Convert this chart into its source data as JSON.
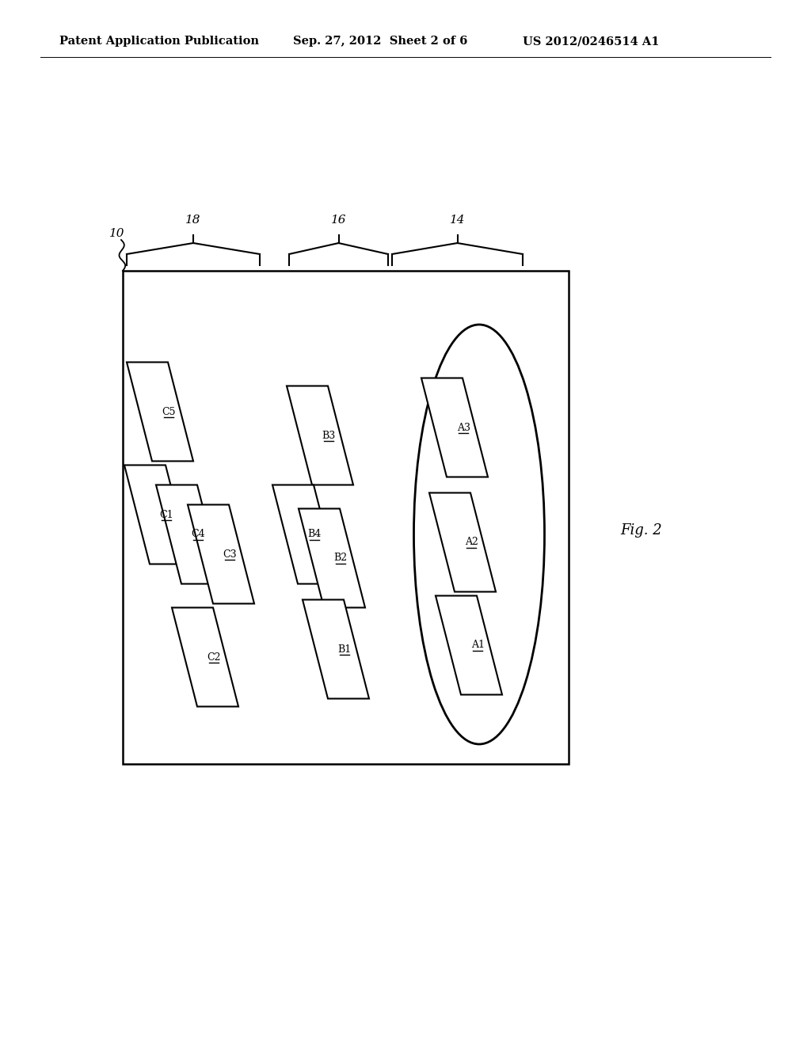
{
  "header_left": "Patent Application Publication",
  "header_mid": "Sep. 27, 2012  Sheet 2 of 6",
  "header_right": "US 2012/0246514 A1",
  "fig_label": "Fig. 2",
  "label_10": "10",
  "label_14": "14",
  "label_16": "16",
  "label_18": "18",
  "bg_color": "#ffffff",
  "line_color": "#000000"
}
